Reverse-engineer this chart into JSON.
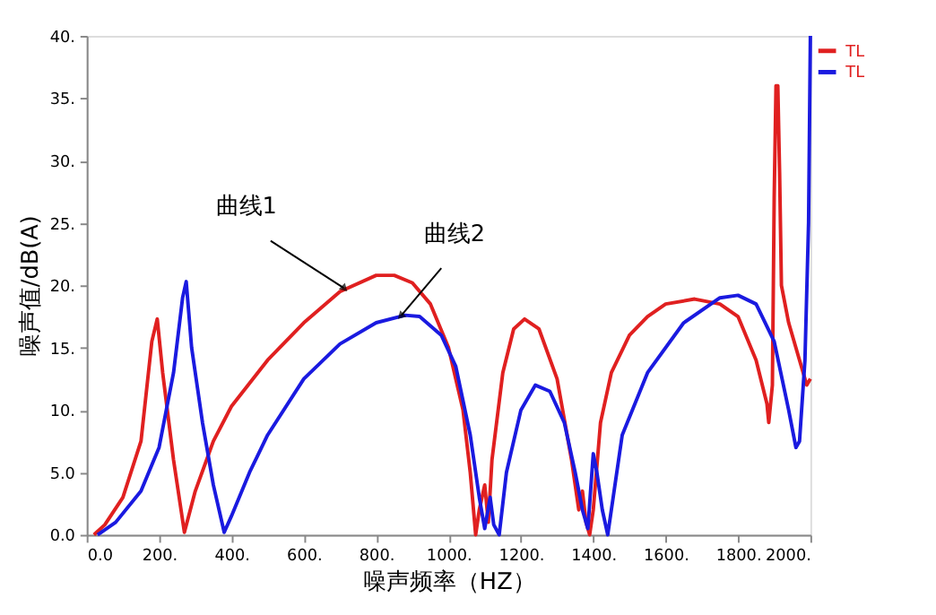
{
  "chart_data": {
    "type": "line",
    "xlabel": "噪声频率（HZ）",
    "ylabel": "噪声值/dB(A)",
    "xlim": [
      0,
      2000
    ],
    "ylim": [
      0,
      40
    ],
    "xticks": [
      {
        "value": 0,
        "label": "0.0"
      },
      {
        "value": 200,
        "label": "200."
      },
      {
        "value": 400,
        "label": "400."
      },
      {
        "value": 600,
        "label": "600."
      },
      {
        "value": 800,
        "label": "800."
      },
      {
        "value": 1000,
        "label": "1000."
      },
      {
        "value": 1200,
        "label": "1200."
      },
      {
        "value": 1400,
        "label": "1400."
      },
      {
        "value": 1600,
        "label": "1600."
      },
      {
        "value": 1800,
        "label": "1800."
      },
      {
        "value": 2000,
        "label": "2000."
      }
    ],
    "yticks": [
      {
        "value": 0,
        "label": "0.0"
      },
      {
        "value": 5,
        "label": "5.0"
      },
      {
        "value": 10,
        "label": "10."
      },
      {
        "value": 15,
        "label": "15."
      },
      {
        "value": 20,
        "label": "20."
      },
      {
        "value": 25,
        "label": "25."
      },
      {
        "value": 30,
        "label": "30."
      },
      {
        "value": 35,
        "label": "35."
      },
      {
        "value": 40,
        "label": "40."
      }
    ],
    "grid": false,
    "legend": "top right",
    "marker": "none",
    "line_style": "solid",
    "annotations": [
      {
        "text": "曲线1",
        "x": 710,
        "y": 19.8
      },
      {
        "text": "曲线2",
        "x": 870,
        "y": 17.6
      }
    ],
    "series": [
      {
        "name": "TL",
        "color": "#e02020",
        "x": [
          20,
          50,
          100,
          150,
          180,
          195,
          210,
          240,
          270,
          300,
          350,
          400,
          500,
          600,
          700,
          800,
          850,
          900,
          950,
          1000,
          1040,
          1060,
          1075,
          1085,
          1100,
          1110,
          1120,
          1150,
          1180,
          1210,
          1250,
          1300,
          1340,
          1360,
          1370,
          1380,
          1390,
          1400,
          1420,
          1450,
          1500,
          1550,
          1600,
          1680,
          1750,
          1800,
          1850,
          1880,
          1885,
          1895,
          1900,
          1905,
          1910,
          1915,
          1920,
          1940,
          1970,
          1990,
          2000
        ],
        "values": [
          0,
          0.8,
          3,
          7.5,
          15.5,
          17.3,
          13,
          6,
          0.2,
          3.5,
          7.5,
          10.3,
          14,
          17,
          19.5,
          20.8,
          20.8,
          20.2,
          18.5,
          15,
          10,
          5,
          0,
          2,
          4,
          1,
          6,
          13,
          16.5,
          17.3,
          16.5,
          12.5,
          6,
          2,
          3.5,
          1,
          0,
          2,
          9,
          13,
          16,
          17.5,
          18.5,
          18.9,
          18.5,
          17.5,
          14,
          10.5,
          9,
          12,
          27,
          36,
          36,
          29,
          20,
          17,
          14,
          12,
          12.5
        ]
      },
      {
        "name": "TL",
        "color": "#1a1ae0",
        "x": [
          30,
          80,
          150,
          200,
          240,
          265,
          275,
          290,
          320,
          350,
          380,
          400,
          450,
          500,
          600,
          700,
          800,
          880,
          920,
          980,
          1020,
          1060,
          1085,
          1100,
          1115,
          1125,
          1140,
          1160,
          1200,
          1240,
          1280,
          1320,
          1350,
          1370,
          1385,
          1400,
          1410,
          1425,
          1440,
          1480,
          1550,
          1650,
          1750,
          1800,
          1850,
          1900,
          1940,
          1960,
          1970,
          1985,
          1995,
          2000
        ],
        "values": [
          0,
          1,
          3.5,
          7,
          13,
          19,
          20.3,
          15,
          9,
          4,
          0.2,
          1.5,
          5,
          8,
          12.5,
          15.3,
          17,
          17.6,
          17.5,
          16,
          13.5,
          8,
          3,
          0.5,
          3,
          0.8,
          0,
          5,
          10,
          12,
          11.5,
          9,
          5,
          2,
          0.5,
          6.5,
          5,
          2,
          0,
          8,
          13,
          17,
          19,
          19.2,
          18.5,
          15.5,
          10,
          7,
          7.5,
          14,
          25,
          40
        ]
      }
    ]
  }
}
